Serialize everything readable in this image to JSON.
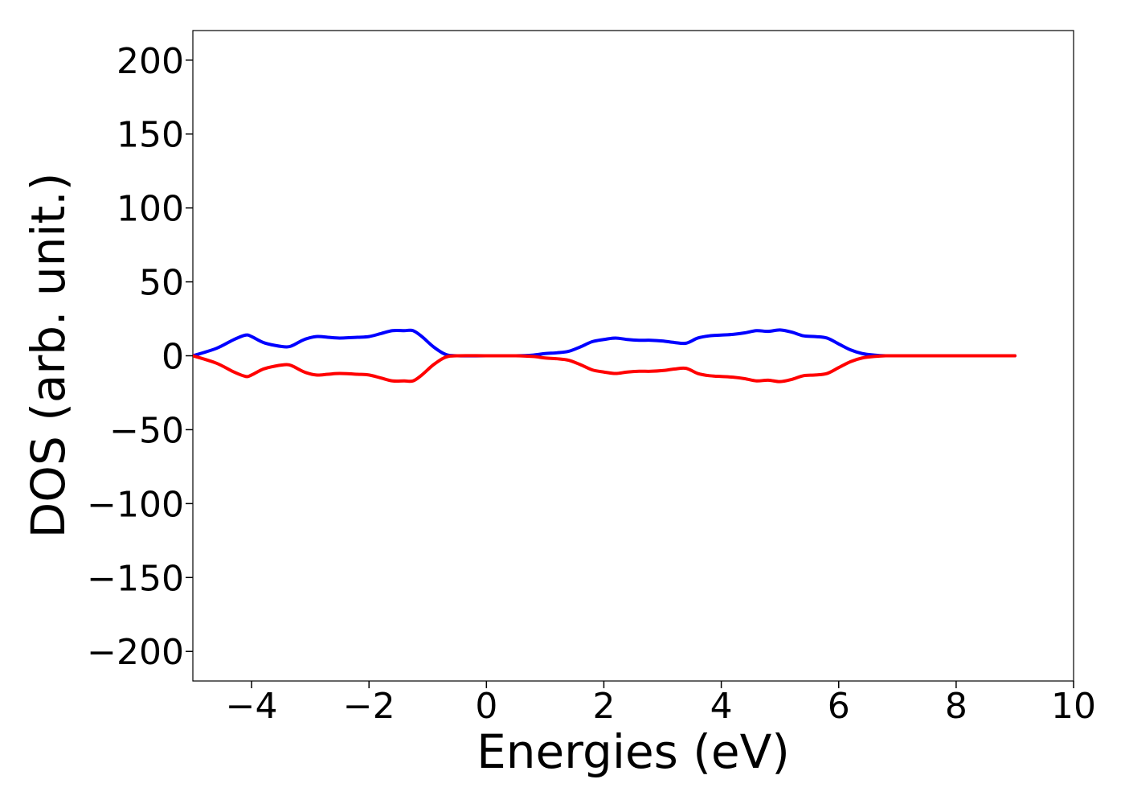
{
  "chart_data": {
    "type": "line",
    "title": "",
    "xlabel": "Energies (eV)",
    "ylabel": "DOS (arb. unit.)",
    "xlim": [
      -5,
      10
    ],
    "ylim": [
      -220,
      220
    ],
    "xticks": [
      -4,
      -2,
      0,
      2,
      4,
      6,
      8,
      10
    ],
    "xtick_labels": [
      "−4",
      "−2",
      "0",
      "2",
      "4",
      "6",
      "8",
      "10"
    ],
    "yticks": [
      200,
      150,
      100,
      50,
      0,
      -50,
      -100,
      -150,
      -200
    ],
    "ytick_labels": [
      "200",
      "150",
      "100",
      "50",
      "0",
      "−50",
      "−100",
      "−150",
      "−200"
    ],
    "grid": false,
    "legend": "none",
    "series": [
      {
        "color": "#0000ff",
        "x": [
          -5,
          -4.6,
          -4.3,
          -4.1,
          -4.0,
          -3.8,
          -3.6,
          -3.4,
          -3.3,
          -3.1,
          -2.9,
          -2.7,
          -2.5,
          -2.2,
          -2.0,
          -1.8,
          -1.6,
          -1.4,
          -1.25,
          -1.1,
          -0.9,
          -0.7,
          -0.5,
          0,
          0.5,
          0.8,
          1.0,
          1.2,
          1.4,
          1.6,
          1.8,
          2.0,
          2.2,
          2.4,
          2.6,
          2.8,
          3.0,
          3.2,
          3.4,
          3.6,
          3.8,
          4.0,
          4.2,
          4.4,
          4.6,
          4.8,
          5.0,
          5.2,
          5.4,
          5.6,
          5.8,
          6.0,
          6.2,
          6.4,
          6.6,
          6.8,
          7.0,
          8.0,
          9.0
        ],
        "y": [
          0,
          5,
          11,
          14,
          13,
          9,
          7,
          6,
          7,
          11,
          13,
          12.5,
          12,
          12.5,
          13,
          15,
          17,
          17,
          17,
          13,
          6,
          1,
          0,
          0,
          0,
          0.5,
          1.5,
          2,
          3,
          6,
          9.5,
          11,
          12,
          11,
          10.5,
          10.5,
          10,
          9,
          8.5,
          12,
          13.5,
          14,
          14.5,
          15.5,
          17,
          16.5,
          17.5,
          16,
          13.5,
          13,
          12,
          8,
          4,
          1.5,
          0.5,
          0,
          0,
          0,
          0
        ]
      },
      {
        "color": "#ff0000",
        "x": [
          -5,
          -4.6,
          -4.3,
          -4.1,
          -4.0,
          -3.8,
          -3.6,
          -3.4,
          -3.3,
          -3.1,
          -2.9,
          -2.7,
          -2.5,
          -2.2,
          -2.0,
          -1.8,
          -1.6,
          -1.4,
          -1.25,
          -1.1,
          -0.9,
          -0.7,
          -0.5,
          0,
          0.5,
          0.8,
          1.0,
          1.2,
          1.4,
          1.6,
          1.8,
          2.0,
          2.2,
          2.4,
          2.6,
          2.8,
          3.0,
          3.2,
          3.4,
          3.6,
          3.8,
          4.0,
          4.2,
          4.4,
          4.6,
          4.8,
          5.0,
          5.2,
          5.4,
          5.6,
          5.8,
          6.0,
          6.2,
          6.4,
          6.6,
          6.8,
          7.0,
          8.0,
          9.0
        ],
        "y": [
          0,
          -5,
          -11,
          -14,
          -13,
          -9,
          -7,
          -6,
          -7,
          -11,
          -13,
          -12.5,
          -12,
          -12.5,
          -13,
          -15,
          -17,
          -17,
          -17,
          -13,
          -6,
          -1,
          0,
          0,
          0,
          -0.5,
          -1.5,
          -2,
          -3,
          -6,
          -9.5,
          -11,
          -12,
          -11,
          -10.5,
          -10.5,
          -10,
          -9,
          -8.5,
          -12,
          -13.5,
          -14,
          -14.5,
          -15.5,
          -17,
          -16.5,
          -17.5,
          -16,
          -13.5,
          -13,
          -12,
          -8,
          -4,
          -1.5,
          -0.5,
          0,
          0,
          0,
          0
        ]
      }
    ]
  }
}
